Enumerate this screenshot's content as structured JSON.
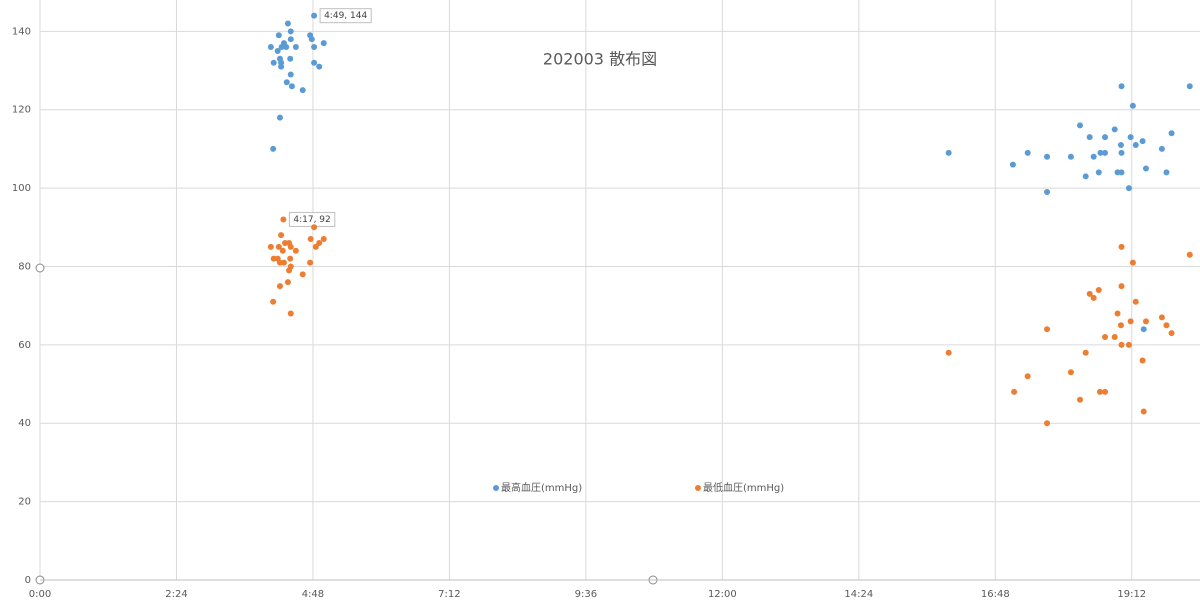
{
  "chart_data": {
    "type": "scatter",
    "title": "202003 散布図",
    "xlim": [
      0,
      20.4
    ],
    "ylim": [
      0,
      148
    ],
    "xticks": [
      {
        "value": 0,
        "label": "0:00"
      },
      {
        "value": 2.4,
        "label": "2:24"
      },
      {
        "value": 4.8,
        "label": "4:48"
      },
      {
        "value": 7.2,
        "label": "7:12"
      },
      {
        "value": 9.6,
        "label": "9:36"
      },
      {
        "value": 12,
        "label": "12:00"
      },
      {
        "value": 14.4,
        "label": "14:24"
      },
      {
        "value": 16.8,
        "label": "16:48"
      },
      {
        "value": 19.2,
        "label": "19:12"
      }
    ],
    "yticks": [
      0,
      20,
      40,
      60,
      80,
      100,
      120,
      140
    ],
    "grid": true,
    "series": [
      {
        "name": "最高血圧(mmHg)",
        "color": "#5b9bd5",
        "x": [
          4.82,
          4.36,
          4.41,
          4.2,
          4.41,
          4.75,
          4.78,
          4.29,
          4.99,
          4.25,
          4.06,
          4.18,
          4.33,
          4.5,
          4.82,
          4.22,
          4.4,
          4.11,
          4.24,
          4.82,
          4.91,
          4.24,
          4.41,
          4.34,
          4.43,
          4.62,
          4.22,
          4.1,
          15.98,
          17.11,
          17.37,
          17.71,
          17.71,
          18.13,
          18.29,
          18.39,
          18.46,
          18.53,
          18.62,
          18.65,
          18.73,
          18.73,
          18.9,
          18.95,
          19.02,
          19.01,
          19.02,
          19.02,
          19.15,
          19.18,
          19.22,
          19.27,
          19.39,
          19.45,
          19.41,
          19.73,
          19.81,
          19.9,
          20.22
        ],
        "values": [
          144,
          142,
          140,
          139,
          138,
          139,
          138,
          137,
          137,
          136,
          136,
          135,
          136,
          136,
          136,
          133,
          133,
          132,
          132,
          132,
          131,
          131,
          129,
          127,
          126,
          125,
          118,
          110,
          109,
          106,
          109,
          108,
          99,
          108,
          116,
          103,
          113,
          108,
          104,
          109,
          109,
          113,
          115,
          104,
          126,
          111,
          104,
          109,
          100,
          113,
          121,
          111,
          112,
          105,
          64,
          110,
          104,
          114,
          126
        ],
        "value_labels": [
          "4:49, 144",
          null,
          null,
          null,
          null,
          null,
          null,
          null,
          null,
          null,
          null,
          null,
          null,
          null,
          null,
          null,
          null,
          null,
          null,
          null,
          null,
          null,
          null,
          null,
          null,
          null,
          null,
          null,
          null,
          null,
          null,
          null,
          null,
          null,
          null,
          null,
          null,
          null,
          null,
          null,
          null,
          null,
          null,
          null,
          null,
          null,
          null,
          null,
          null,
          null,
          null,
          null,
          null,
          null,
          null,
          null,
          null,
          null,
          null
        ]
      },
      {
        "name": "最低血圧(mmHg)",
        "color": "#ed7d31",
        "x": [
          4.28,
          4.82,
          4.24,
          4.76,
          4.99,
          4.31,
          4.38,
          4.91,
          4.06,
          4.2,
          4.41,
          4.85,
          4.27,
          4.5,
          4.11,
          4.18,
          4.4,
          4.29,
          4.22,
          4.41,
          4.38,
          4.62,
          4.36,
          4.22,
          4.1,
          4.41,
          4.75,
          15.98,
          17.13,
          17.37,
          17.71,
          17.71,
          18.13,
          18.29,
          18.39,
          18.46,
          18.53,
          18.62,
          18.64,
          18.73,
          18.73,
          18.9,
          18.95,
          19.02,
          19.02,
          19.01,
          19.02,
          19.15,
          19.18,
          19.22,
          19.27,
          19.39,
          19.45,
          19.41,
          19.73,
          19.81,
          19.9,
          20.22
        ],
        "values": [
          92,
          90,
          88,
          87,
          87,
          86,
          86,
          86,
          85,
          85,
          85,
          85,
          84,
          84,
          82,
          82,
          82,
          81,
          81,
          80,
          79,
          78,
          76,
          75,
          71,
          68,
          81,
          58,
          48,
          52,
          64,
          40,
          53,
          46,
          58,
          73,
          72,
          74,
          48,
          48,
          62,
          62,
          68,
          75,
          85,
          65,
          60,
          60,
          66,
          81,
          71,
          56,
          66,
          43,
          67,
          65,
          63,
          83
        ],
        "value_labels": [
          "4:17, 92",
          null,
          null,
          null,
          null,
          null,
          null,
          null,
          null,
          null,
          null,
          null,
          null,
          null,
          null,
          null,
          null,
          null,
          null,
          null,
          null,
          null,
          null,
          null,
          null,
          null,
          null,
          null,
          null,
          null,
          null,
          null,
          null,
          null,
          null,
          null,
          null,
          null,
          null,
          null,
          null,
          null,
          null,
          null,
          null,
          null,
          null,
          null,
          null,
          null,
          null,
          null,
          null,
          null,
          null,
          null,
          null,
          null
        ]
      }
    ]
  }
}
